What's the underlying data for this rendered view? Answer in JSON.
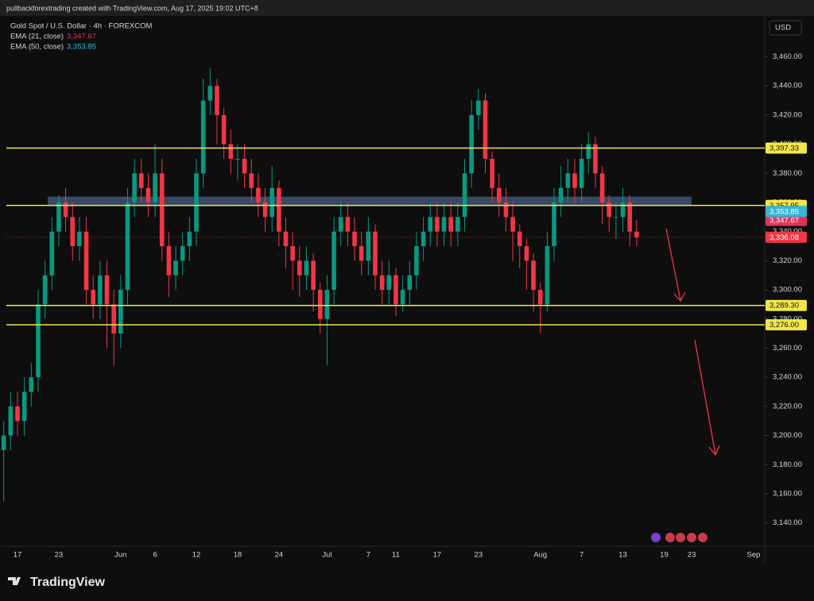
{
  "chart_data": {
    "type": "candlestick",
    "header": "pullbackforextrading created with TradingView.com, Aug 17, 2025 19:02 UTC+8",
    "title": "Gold Spot / U.S. Dollar · 4h · FOREXCOM",
    "currency": "USD",
    "brand": "TradingView",
    "up_color": "#089981",
    "down_color": "#f23645",
    "grid": false,
    "categories": [
      null,
      null,
      "17",
      null,
      null,
      null,
      null,
      null,
      "23",
      null,
      null,
      null,
      null,
      null,
      null,
      null,
      null,
      "Jun",
      null,
      null,
      null,
      null,
      "6",
      null,
      null,
      null,
      null,
      null,
      "12",
      null,
      null,
      null,
      null,
      null,
      "18",
      null,
      null,
      null,
      null,
      null,
      "24",
      null,
      null,
      null,
      null,
      null,
      null,
      "Jul",
      null,
      null,
      null,
      null,
      null,
      "7",
      null,
      null,
      null,
      "11",
      null,
      null,
      null,
      null,
      null,
      "17",
      null,
      null,
      null,
      null,
      null,
      "23",
      null,
      null,
      null,
      null,
      null,
      null,
      null,
      null,
      "Aug",
      null,
      null,
      null,
      null,
      null,
      "7",
      null,
      null,
      null,
      null,
      null,
      "13",
      null,
      null,
      null,
      null,
      null,
      "19",
      null,
      null,
      null,
      "23",
      null,
      null,
      null,
      null,
      null,
      null,
      null,
      null,
      "Sep",
      null,
      null
    ],
    "open": [
      3190,
      3200,
      3220,
      3210,
      3230,
      3240,
      3290,
      3310,
      3340,
      3360,
      3350,
      3330,
      3340,
      3300,
      3290,
      3310,
      3290,
      3270,
      3300,
      3360,
      3380,
      3370,
      3360,
      3380,
      3330,
      3310,
      3320,
      3330,
      3340,
      3380,
      3430,
      3440,
      3420,
      3400,
      3390,
      3390,
      3380,
      3370,
      3360,
      3350,
      3370,
      3340,
      3330,
      3320,
      3310,
      3320,
      3300,
      3280,
      3300,
      3340,
      3350,
      3340,
      3330,
      3320,
      3340,
      3310,
      3300,
      3310,
      3290,
      3300,
      3310,
      3330,
      3340,
      3350,
      3340,
      3350,
      3340,
      3350,
      3380,
      3420,
      3430,
      3390,
      3370,
      3360,
      3350,
      3340,
      3330,
      3320,
      3300,
      3290,
      3330,
      3360,
      3370,
      3380,
      3370,
      3390,
      3400,
      3380,
      3360,
      3350,
      3350,
      3360,
      3340,
      null,
      null,
      null,
      null,
      null,
      null,
      null,
      null,
      null,
      null,
      null,
      null,
      null,
      null,
      null,
      null,
      null,
      null,
      null
    ],
    "high": [
      3210,
      3230,
      3230,
      3240,
      3250,
      3300,
      3320,
      3350,
      3365,
      3370,
      3360,
      3350,
      3350,
      3310,
      3320,
      3320,
      3300,
      3310,
      3370,
      3390,
      3390,
      3380,
      3400,
      3390,
      3340,
      3330,
      3340,
      3350,
      3390,
      3445,
      3452,
      3445,
      3425,
      3410,
      3400,
      3400,
      3390,
      3380,
      3370,
      3385,
      3375,
      3350,
      3340,
      3330,
      3330,
      3325,
      3305,
      3310,
      3350,
      3360,
      3360,
      3350,
      3340,
      3350,
      3345,
      3320,
      3320,
      3315,
      3310,
      3320,
      3340,
      3350,
      3360,
      3360,
      3360,
      3360,
      3360,
      3390,
      3430,
      3438,
      3435,
      3395,
      3380,
      3370,
      3360,
      3345,
      3335,
      3325,
      3305,
      3340,
      3370,
      3385,
      3390,
      3390,
      3400,
      3408,
      3405,
      3385,
      3365,
      3360,
      3370,
      3365,
      3348,
      null,
      null,
      null,
      null,
      null,
      null,
      null,
      null,
      null,
      null,
      null,
      null,
      null,
      null,
      null,
      null,
      null,
      null,
      null
    ],
    "low": [
      3155,
      3190,
      3200,
      3200,
      3220,
      3230,
      3280,
      3300,
      3330,
      3340,
      3320,
      3320,
      3290,
      3280,
      3280,
      3260,
      3248,
      3260,
      3290,
      3350,
      3360,
      3350,
      3350,
      3320,
      3295,
      3300,
      3310,
      3320,
      3330,
      3370,
      3420,
      3400,
      3390,
      3380,
      3375,
      3370,
      3360,
      3350,
      3340,
      3340,
      3330,
      3315,
      3300,
      3295,
      3300,
      3285,
      3270,
      3248,
      3290,
      3330,
      3330,
      3320,
      3310,
      3310,
      3300,
      3290,
      3290,
      3282,
      3285,
      3290,
      3300,
      3320,
      3330,
      3330,
      3330,
      3330,
      3330,
      3340,
      3370,
      3410,
      3380,
      3360,
      3350,
      3340,
      3320,
      3315,
      3300,
      3285,
      3270,
      3285,
      3320,
      3350,
      3360,
      3360,
      3360,
      3380,
      3370,
      3345,
      3340,
      3335,
      3340,
      3330,
      3330,
      null,
      null,
      null,
      null,
      null,
      null,
      null,
      null,
      null,
      null,
      null,
      null,
      null,
      null,
      null,
      null,
      null,
      null,
      null
    ],
    "close": [
      3200,
      3220,
      3210,
      3230,
      3240,
      3290,
      3310,
      3340,
      3360,
      3350,
      3330,
      3340,
      3300,
      3290,
      3310,
      3290,
      3270,
      3300,
      3360,
      3380,
      3370,
      3360,
      3380,
      3330,
      3310,
      3320,
      3330,
      3340,
      3380,
      3430,
      3440,
      3420,
      3400,
      3390,
      3390,
      3380,
      3370,
      3360,
      3350,
      3370,
      3340,
      3330,
      3320,
      3310,
      3320,
      3300,
      3280,
      3300,
      3340,
      3350,
      3340,
      3330,
      3320,
      3340,
      3310,
      3300,
      3310,
      3290,
      3300,
      3310,
      3330,
      3340,
      3350,
      3340,
      3350,
      3340,
      3350,
      3380,
      3420,
      3430,
      3390,
      3370,
      3360,
      3350,
      3340,
      3330,
      3320,
      3300,
      3290,
      3330,
      3360,
      3370,
      3380,
      3370,
      3390,
      3400,
      3380,
      3360,
      3350,
      3350,
      3360,
      3340,
      3336.08,
      null,
      null,
      null,
      null,
      null,
      null,
      null,
      null,
      null,
      null,
      null,
      null,
      null,
      null,
      null,
      null,
      null,
      null,
      null
    ],
    "last_price": {
      "value": 3336.08,
      "label": "3,336.08",
      "color": "#f23645"
    },
    "ylim": [
      3124,
      3487
    ],
    "yticks": [
      {
        "value": 3140,
        "label": "3,140.00"
      },
      {
        "value": 3160,
        "label": "3,160.00"
      },
      {
        "value": 3180,
        "label": "3,180.00"
      },
      {
        "value": 3200,
        "label": "3,200.00"
      },
      {
        "value": 3220,
        "label": "3,220.00"
      },
      {
        "value": 3240,
        "label": "3,240.00"
      },
      {
        "value": 3260,
        "label": "3,260.00"
      },
      {
        "value": 3280,
        "label": "3,280.00"
      },
      {
        "value": 3300,
        "label": "3,300.00"
      },
      {
        "value": 3320,
        "label": "3,320.00"
      },
      {
        "value": 3340,
        "label": "3,340.00"
      },
      {
        "value": 3360,
        "label": "3,360.00"
      },
      {
        "value": 3380,
        "label": "3,380.00"
      },
      {
        "value": 3400,
        "label": "3,400.00"
      },
      {
        "value": 3420,
        "label": "3,420.00"
      },
      {
        "value": 3440,
        "label": "3,440.00"
      },
      {
        "value": 3460,
        "label": "3,460.00"
      }
    ],
    "zone": {
      "from": 3358,
      "to": 3364,
      "color": "#3f5372"
    },
    "levels": [
      {
        "value": 3397.33,
        "label": "3,397.33",
        "color": "#f2e64a"
      },
      {
        "value": 3357.95,
        "label": "3,357.95",
        "color": "#f2e64a"
      },
      {
        "value": 3289.3,
        "label": "3,289.30",
        "color": "#f2e64a"
      },
      {
        "value": 3276.0,
        "label": "3,276.00",
        "color": "#f2e64a"
      }
    ],
    "indicators": [
      {
        "name": "EMA (21, close)",
        "value": 3347.67,
        "value_label": "3,347.67",
        "color": "#e0335c"
      },
      {
        "name": "EMA (50, close)",
        "value": 3353.85,
        "value_label": "3,353.85",
        "color": "#38b6d6"
      }
    ]
  }
}
